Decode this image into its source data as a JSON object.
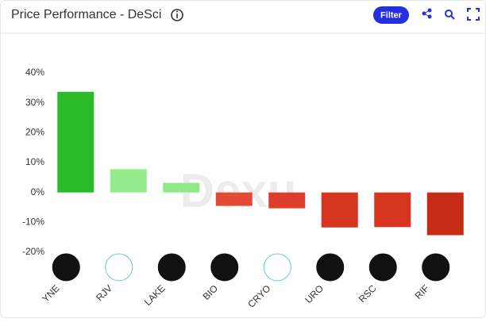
{
  "header": {
    "title": "Price Performance - DeSci",
    "button": "Filter"
  },
  "chart_data": {
    "type": "bar",
    "categories": [
      "YNE",
      "RJV",
      "LAKE",
      "BIO",
      "CRYO",
      "URO",
      "RSC",
      "RIF"
    ],
    "values": [
      33.7,
      7.8,
      3.2,
      -4.5,
      -5.3,
      -11.7,
      -11.6,
      -14.3
    ],
    "colors": [
      "#2cbb2a",
      "#95ec8c",
      "#90e888",
      "#e24a33",
      "#dd3d2a",
      "#d6351f",
      "#d6351f",
      "#c42c16"
    ],
    "ylim": [
      -20,
      40
    ],
    "yticks": [
      {
        "value": -20,
        "label": "-20%"
      },
      {
        "value": -10,
        "label": "-10%"
      },
      {
        "value": 0,
        "label": "0%"
      },
      {
        "value": 10,
        "label": "10%"
      },
      {
        "value": 20,
        "label": "20%"
      },
      {
        "value": 30,
        "label": "30%"
      },
      {
        "value": 40,
        "label": "40%"
      }
    ],
    "grid": false
  }
}
